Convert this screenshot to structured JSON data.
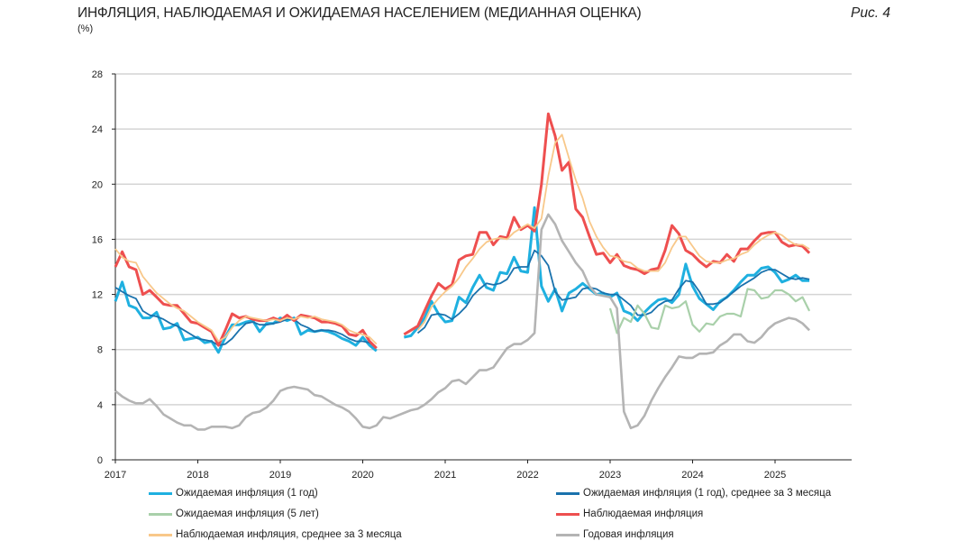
{
  "header": {
    "title": "ИНФЛЯЦИЯ, НАБЛЮДАЕМАЯ И ОЖИДАЕМАЯ НАСЕЛЕНИЕМ (МЕДИАННАЯ ОЦЕНКА)",
    "unit": "(%)",
    "figure_label": "Рис. 4"
  },
  "chart_data": {
    "type": "line",
    "title": "ИНФЛЯЦИЯ, НАБЛЮДАЕМАЯ И ОЖИДАЕМАЯ НАСЕЛЕНИЕМ (МЕДИАННАЯ ОЦЕНКА)",
    "ylabel": "(%)",
    "xlabel": "",
    "frequency": "monthly",
    "ylim": [
      0,
      28
    ],
    "yticks": [
      "0",
      "4",
      "8",
      "12",
      "16",
      "20",
      "24",
      "28"
    ],
    "xticks": [
      "2017",
      "2018",
      "2019",
      "2020",
      "2021",
      "2022",
      "2023",
      "2024",
      "2025"
    ],
    "xlim": [
      "2017-01",
      "2025-12"
    ],
    "grid": "horizontal",
    "legend_position": "bottom",
    "series": [
      {
        "name": "Ожидаемая инфляция (1 год)",
        "color": "#1fb0e0",
        "width": 3,
        "start": "2017-01",
        "values": [
          11.5,
          12.9,
          11.2,
          11.0,
          10.3,
          10.3,
          10.7,
          9.5,
          9.6,
          9.9,
          8.7,
          8.8,
          8.9,
          8.5,
          8.6,
          7.8,
          8.9,
          9.8,
          9.8,
          10.0,
          10.1,
          9.3,
          9.9,
          9.9,
          10.3,
          10.1,
          10.3,
          9.1,
          9.4,
          9.3,
          9.4,
          9.3,
          9.1,
          8.8,
          8.6,
          8.3,
          8.9,
          8.3,
          7.9,
          null,
          null,
          null,
          8.9,
          9.0,
          9.6,
          10.3,
          11.5,
          10.6,
          10.0,
          10.1,
          11.8,
          11.4,
          12.5,
          13.4,
          12.5,
          12.3,
          13.6,
          13.5,
          14.7,
          13.7,
          13.6,
          18.3,
          12.6,
          11.5,
          12.4,
          10.8,
          12.1,
          12.4,
          12.8,
          12.4,
          12.0,
          12.1,
          11.8,
          12.1,
          10.8,
          10.6,
          10.1,
          10.7,
          11.2,
          11.6,
          11.7,
          11.4,
          12.0,
          14.2,
          12.6,
          11.7,
          11.3,
          10.9,
          11.5,
          11.8,
          12.3,
          12.9,
          13.4,
          13.4,
          13.9,
          14.0,
          13.6,
          12.9,
          13.1,
          13.4,
          13.0,
          13.0
        ]
      },
      {
        "name": "Ожидаемая инфляция (1 год), среднее за 3 месяца",
        "color": "#1a72ad",
        "width": 1.8,
        "start": "2017-01",
        "values": [
          12.5,
          12.2,
          11.9,
          11.7,
          10.8,
          10.5,
          10.4,
          10.2,
          9.9,
          9.7,
          9.4,
          9.1,
          8.8,
          8.7,
          8.6,
          8.3,
          8.4,
          8.8,
          9.4,
          9.9,
          10.0,
          9.8,
          9.8,
          9.9,
          10.0,
          10.2,
          10.2,
          9.8,
          9.6,
          9.3,
          9.4,
          9.4,
          9.3,
          9.1,
          8.8,
          8.6,
          8.6,
          8.5,
          8.1,
          null,
          null,
          null,
          null,
          null,
          9.2,
          9.6,
          10.5,
          10.6,
          10.5,
          10.2,
          10.6,
          11.1,
          11.9,
          12.4,
          12.8,
          12.7,
          12.8,
          13.1,
          13.9,
          14.0,
          14.0,
          15.2,
          14.8,
          14.1,
          12.2,
          11.6,
          11.7,
          11.8,
          12.4,
          12.5,
          12.4,
          12.1,
          12.0,
          12.0,
          11.6,
          11.2,
          10.5,
          10.5,
          10.7,
          11.2,
          11.5,
          11.6,
          12.4,
          13.0,
          12.9,
          12.2,
          11.3,
          11.3,
          11.4,
          11.8,
          12.2,
          12.6,
          12.9,
          13.2,
          13.6,
          13.8,
          13.8,
          13.5,
          13.2,
          13.1,
          13.2,
          13.1
        ]
      },
      {
        "name": "Ожидаемая инфляция (5 лет)",
        "color": "#a9d0aa",
        "width": 2.2,
        "start": "2023-01",
        "values": [
          11.0,
          9.2,
          10.3,
          10.0,
          11.2,
          10.6,
          9.6,
          9.5,
          11.2,
          11.0,
          11.1,
          11.5,
          9.8,
          9.3,
          9.9,
          9.8,
          10.4,
          10.6,
          10.6,
          10.4,
          12.4,
          12.3,
          11.7,
          11.8,
          12.3,
          12.3,
          12.0,
          11.5,
          11.8,
          10.8
        ]
      },
      {
        "name": "Наблюдаемая инфляция",
        "color": "#ee4f4f",
        "width": 3,
        "start": "2017-01",
        "values": [
          14.0,
          15.1,
          14.0,
          13.8,
          12.0,
          12.3,
          11.8,
          11.3,
          11.2,
          11.2,
          10.6,
          10.0,
          9.9,
          9.6,
          9.3,
          8.3,
          9.4,
          10.6,
          10.3,
          10.4,
          10.2,
          10.1,
          10.1,
          10.3,
          10.1,
          10.5,
          10.1,
          10.5,
          10.4,
          10.3,
          10.0,
          10.0,
          9.9,
          9.7,
          9.1,
          9.0,
          9.4,
          8.6,
          8.1,
          null,
          null,
          null,
          9.1,
          9.4,
          9.7,
          10.8,
          11.9,
          12.8,
          12.4,
          12.7,
          14.5,
          14.8,
          14.9,
          16.5,
          16.5,
          15.6,
          16.2,
          16.1,
          17.6,
          16.7,
          17.0,
          16.6,
          20.0,
          25.1,
          23.5,
          21.0,
          21.6,
          18.2,
          17.6,
          16.2,
          14.9,
          15.0,
          14.3,
          14.9,
          14.1,
          13.9,
          13.8,
          13.5,
          13.8,
          13.9,
          15.2,
          17.0,
          16.4,
          15.2,
          14.9,
          14.4,
          14.0,
          14.4,
          14.3,
          14.9,
          14.4,
          15.3,
          15.3,
          15.9,
          16.4,
          16.5,
          16.5,
          15.8,
          15.5,
          15.6,
          15.5,
          15.0
        ]
      },
      {
        "name": "Наблюдаемая инфляция, среднее за 3 месяца",
        "color": "#f8c88a",
        "width": 1.8,
        "start": "2017-01",
        "values": [
          15.3,
          14.7,
          14.4,
          14.3,
          13.3,
          12.7,
          12.1,
          11.7,
          11.3,
          11.0,
          10.8,
          10.4,
          10.0,
          9.7,
          9.4,
          8.6,
          8.9,
          9.6,
          10.1,
          10.4,
          10.3,
          10.2,
          10.1,
          10.2,
          10.1,
          10.3,
          10.2,
          10.4,
          10.3,
          10.4,
          10.2,
          10.1,
          10.0,
          9.8,
          9.4,
          9.2,
          9.1,
          8.9,
          8.4,
          null,
          null,
          null,
          null,
          null,
          9.4,
          10.0,
          11.1,
          11.7,
          12.2,
          12.6,
          13.2,
          14.0,
          14.6,
          15.3,
          15.8,
          16.0,
          16.1,
          16.0,
          16.5,
          16.8,
          17.1,
          16.8,
          17.5,
          20.6,
          23.0,
          23.6,
          21.9,
          20.3,
          19.0,
          17.3,
          16.2,
          15.4,
          14.8,
          14.7,
          14.4,
          14.3,
          13.9,
          13.7,
          13.7,
          13.7,
          14.3,
          15.4,
          16.2,
          16.2,
          15.5,
          14.8,
          14.4,
          14.3,
          14.3,
          14.5,
          14.6,
          14.9,
          15.1,
          15.6,
          16.0,
          16.3,
          16.5,
          16.3,
          15.9,
          15.6,
          15.6,
          15.3
        ]
      },
      {
        "name": "Годовая инфляция",
        "color": "#b4b4b4",
        "width": 2.6,
        "start": "2017-01",
        "values": [
          5.0,
          4.6,
          4.3,
          4.1,
          4.1,
          4.4,
          3.9,
          3.3,
          3.0,
          2.7,
          2.5,
          2.5,
          2.2,
          2.2,
          2.4,
          2.4,
          2.4,
          2.3,
          2.5,
          3.1,
          3.4,
          3.5,
          3.8,
          4.3,
          5.0,
          5.2,
          5.3,
          5.2,
          5.1,
          4.7,
          4.6,
          4.3,
          4.0,
          3.8,
          3.5,
          3.0,
          2.4,
          2.3,
          2.5,
          3.1,
          3.0,
          3.2,
          3.4,
          3.6,
          3.7,
          4.0,
          4.4,
          4.9,
          5.2,
          5.7,
          5.8,
          5.5,
          6.0,
          6.5,
          6.5,
          6.7,
          7.4,
          8.1,
          8.4,
          8.4,
          8.7,
          9.2,
          16.7,
          17.8,
          17.1,
          15.9,
          15.1,
          14.3,
          13.7,
          12.6,
          12.0,
          11.9,
          11.8,
          11.0,
          3.5,
          2.3,
          2.5,
          3.2,
          4.3,
          5.2,
          6.0,
          6.7,
          7.5,
          7.4,
          7.4,
          7.7,
          7.7,
          7.8,
          8.3,
          8.6,
          9.1,
          9.1,
          8.6,
          8.5,
          8.9,
          9.5,
          9.9,
          10.1,
          10.3,
          10.2,
          9.9,
          9.4
        ]
      }
    ]
  }
}
